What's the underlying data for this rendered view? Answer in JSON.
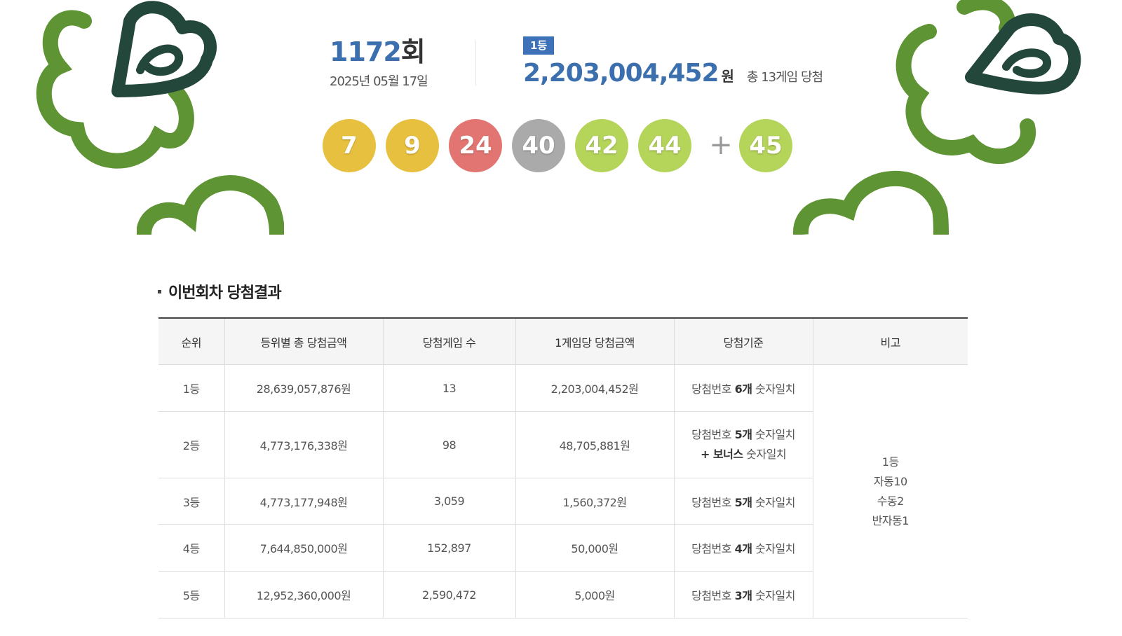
{
  "round": {
    "number": "1172",
    "suffix": "회",
    "date": "2025년 05월 17일"
  },
  "first_prize": {
    "badge": "1등",
    "amount": "2,203,004,452",
    "unit": "원",
    "games": "총 13게임 당첨"
  },
  "balls": [
    {
      "value": "7",
      "color": "#e8c03f"
    },
    {
      "value": "9",
      "color": "#e8c03f"
    },
    {
      "value": "24",
      "color": "#e27571"
    },
    {
      "value": "40",
      "color": "#aaaaaa"
    },
    {
      "value": "42",
      "color": "#b5d45a"
    },
    {
      "value": "44",
      "color": "#b5d45a"
    }
  ],
  "plus_symbol": "+",
  "bonus_ball": {
    "value": "45",
    "color": "#b5d45a"
  },
  "section": {
    "title": "이번회차 당첨결과"
  },
  "table": {
    "headers": [
      "순위",
      "등위별 총 당첨금액",
      "당첨게임 수",
      "1게임당 당첨금액",
      "당첨기준",
      "비고"
    ],
    "rows": [
      {
        "rank": "1등",
        "total": "28,639,057,876원",
        "count": "13",
        "per_game": "2,203,004,452원",
        "criteria_pre": "당첨번호 ",
        "criteria_bold": "6개",
        "criteria_post": " 숫자일치",
        "criteria2_bold": "",
        "criteria2_post": ""
      },
      {
        "rank": "2등",
        "total": "4,773,176,338원",
        "count": "98",
        "per_game": "48,705,881원",
        "criteria_pre": "당첨번호 ",
        "criteria_bold": "5개",
        "criteria_post": " 숫자일치",
        "criteria2_bold": "+ 보너스",
        "criteria2_post": " 숫자일치"
      },
      {
        "rank": "3등",
        "total": "4,773,177,948원",
        "count": "3,059",
        "per_game": "1,560,372원",
        "criteria_pre": "당첨번호 ",
        "criteria_bold": "5개",
        "criteria_post": " 숫자일치",
        "criteria2_bold": "",
        "criteria2_post": ""
      },
      {
        "rank": "4등",
        "total": "7,644,850,000원",
        "count": "152,897",
        "per_game": "50,000원",
        "criteria_pre": "당첨번호 ",
        "criteria_bold": "4개",
        "criteria_post": " 숫자일치",
        "criteria2_bold": "",
        "criteria2_post": ""
      },
      {
        "rank": "5등",
        "total": "12,952,360,000원",
        "count": "2,590,472",
        "per_game": "5,000원",
        "criteria_pre": "당첨번호 ",
        "criteria_bold": "3개",
        "criteria_post": " 숫자일치",
        "criteria2_bold": "",
        "criteria2_post": ""
      }
    ],
    "note_lines": [
      "1등",
      "자동10",
      "수동2",
      "반자동1"
    ]
  },
  "colors": {
    "accent_blue": "#3b6fae",
    "leaf_green": "#5e9434",
    "leaf_dark": "#23473a"
  }
}
